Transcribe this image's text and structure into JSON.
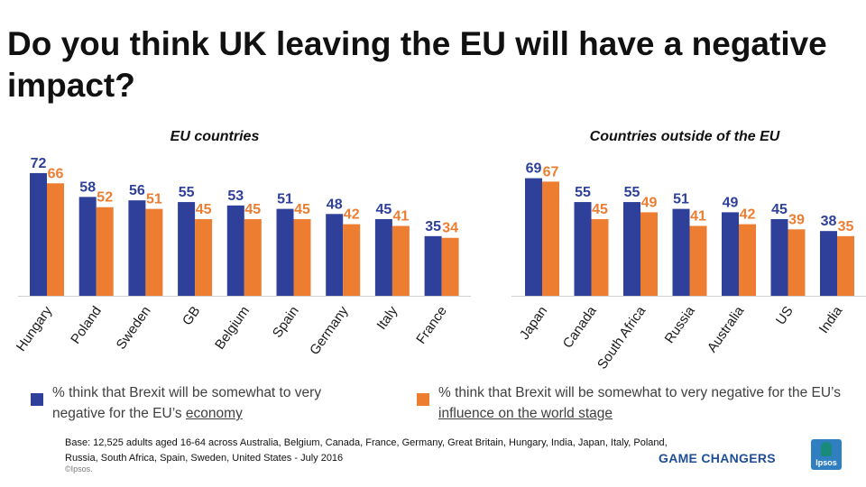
{
  "title": "Do you think UK leaving the EU will have a negative impact?",
  "colors": {
    "economy": "#2e4099",
    "influence": "#ed7d31",
    "label_economy": "#2e4099",
    "label_influence": "#ed7d31"
  },
  "chart_data": [
    {
      "type": "bar",
      "title": "EU countries",
      "categories": [
        "Hungary",
        "Poland",
        "Sweden",
        "GB",
        "Belgium",
        "Spain",
        "Germany",
        "Italy",
        "France"
      ],
      "series": [
        {
          "name": "% think that Brexit will be somewhat to very negative for the EU's economy",
          "values": [
            72,
            58,
            56,
            55,
            53,
            51,
            48,
            45,
            35
          ]
        },
        {
          "name": "% think that Brexit will be somewhat to very negative for the EU's influence on the world stage",
          "values": [
            66,
            52,
            51,
            45,
            45,
            45,
            42,
            41,
            34
          ]
        }
      ],
      "ylim": [
        0,
        100
      ],
      "grid": false,
      "xlabel": "",
      "ylabel": ""
    },
    {
      "type": "bar",
      "title": "Countries outside of the EU",
      "categories": [
        "Japan",
        "Canada",
        "South Africa",
        "Russia",
        "Australia",
        "US",
        "India"
      ],
      "series": [
        {
          "name": "% think that Brexit will be somewhat to very negative for the EU's economy",
          "values": [
            69,
            55,
            55,
            51,
            49,
            45,
            38
          ]
        },
        {
          "name": "% think that Brexit will be somewhat to very negative for the EU's influence on the world stage",
          "values": [
            67,
            45,
            49,
            41,
            42,
            39,
            35
          ]
        }
      ],
      "ylim": [
        0,
        100
      ],
      "grid": false,
      "xlabel": "",
      "ylabel": ""
    }
  ],
  "legend": {
    "economy_prefix": "% think that Brexit will be somewhat to very negative for the EU’s",
    "economy_underlined": "economy",
    "influence_prefix": "% think that Brexit will be somewhat to very negative for the EU’s",
    "influence_underlined": "influence on the world stage"
  },
  "footnote": "Base: 12,525 adults aged 16-64 across  Australia, Belgium, Canada, France, Germany, Great Britain, Hungary, India, Japan, Italy, Poland, Russia, South Africa, Spain, Sweden, United States - July 2016",
  "copyright": "©Ipsos.",
  "brand": {
    "tagline": "GAME CHANGERS",
    "logo_text": "Ipsos"
  }
}
